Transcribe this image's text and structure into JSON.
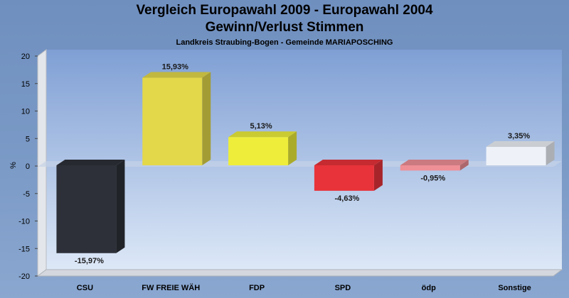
{
  "header": {
    "title_line1": "Vergleich Europawahl 2009 - Europawahl 2004",
    "title_line2": "Gewinn/Verlust Stimmen",
    "subtitle": "Landkreis Straubing-Bogen - Gemeinde MARIAPOSCHING"
  },
  "chart_data": {
    "type": "bar",
    "title": "Vergleich Europawahl 2009 - Europawahl 2004 Gewinn/Verlust Stimmen",
    "subtitle": "Landkreis Straubing-Bogen - Gemeinde MARIAPOSCHING",
    "ylabel": "%",
    "xlabel": "",
    "ylim": [
      -20,
      20
    ],
    "yticks": [
      20,
      15,
      10,
      5,
      0,
      -5,
      -10,
      -15,
      -20
    ],
    "categories": [
      "CSU",
      "FW FREIE WÄH",
      "FDP",
      "SPD",
      "ödp",
      "Sonstige"
    ],
    "values": [
      -15.97,
      15.93,
      5.13,
      -4.63,
      -0.95,
      3.35
    ],
    "labels": [
      "-15,97%",
      "15,93%",
      "5,13%",
      "-4,63%",
      "-0,95%",
      "3,35%"
    ],
    "colors": [
      "#2d3038",
      "#e3d84a",
      "#eeee3a",
      "#e8333a",
      "#ef8f96",
      "#eef2f8"
    ],
    "grid": false,
    "legend": "none"
  }
}
